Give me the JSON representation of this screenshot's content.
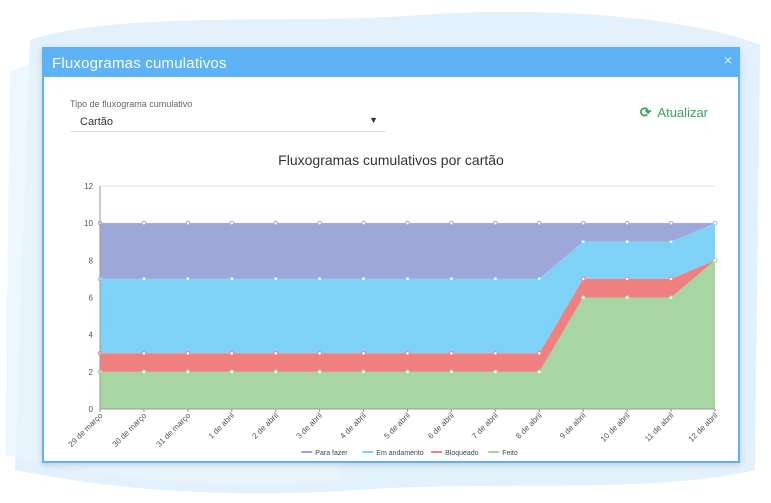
{
  "dialog": {
    "title": "Fluxogramas cumulativos",
    "close_glyph": "×"
  },
  "form": {
    "select_label": "Tipo de fluxograma cumulativo",
    "select_value": "Cartão",
    "select_arrow": "▼"
  },
  "toolbar": {
    "refresh_label": "Atualizar",
    "refresh_icon": "refresh-icon"
  },
  "colors": {
    "header": "#5db3f5",
    "todo": "#9da7d9",
    "doing": "#7fd2f7",
    "blocked": "#f08080",
    "done": "#a8d6a3"
  },
  "chart_data": {
    "type": "area",
    "title": "Fluxogramas cumulativos por cartão",
    "categories": [
      "29 de março",
      "30 de março",
      "31 de março",
      "1 de abril",
      "2 de abril",
      "3 de abril",
      "4 de abril",
      "5 de abril",
      "6 de abril",
      "7 de abril",
      "8 de abril",
      "9 de abril",
      "10 de abril",
      "11 de abril",
      "12 de abril"
    ],
    "ylim": [
      0,
      12
    ],
    "yticks": [
      0,
      2,
      4,
      6,
      8,
      10,
      12
    ],
    "stacked_cumulative": true,
    "legend_position": "bottom",
    "series": [
      {
        "name": "Para fazer",
        "key": "todo",
        "values": [
          10,
          10,
          10,
          10,
          10,
          10,
          10,
          10,
          10,
          10,
          10,
          10,
          10,
          10,
          10
        ]
      },
      {
        "name": "Em andamento",
        "key": "doing",
        "values": [
          7,
          7,
          7,
          7,
          7,
          7,
          7,
          7,
          7,
          7,
          7,
          9,
          9,
          9,
          10
        ]
      },
      {
        "name": "Bloqueado",
        "key": "blocked",
        "values": [
          3,
          3,
          3,
          3,
          3,
          3,
          3,
          3,
          3,
          3,
          3,
          7,
          7,
          7,
          8
        ]
      },
      {
        "name": "Feito",
        "key": "done",
        "values": [
          2,
          2,
          2,
          2,
          2,
          2,
          2,
          2,
          2,
          2,
          2,
          6,
          6,
          6,
          8
        ]
      }
    ]
  }
}
